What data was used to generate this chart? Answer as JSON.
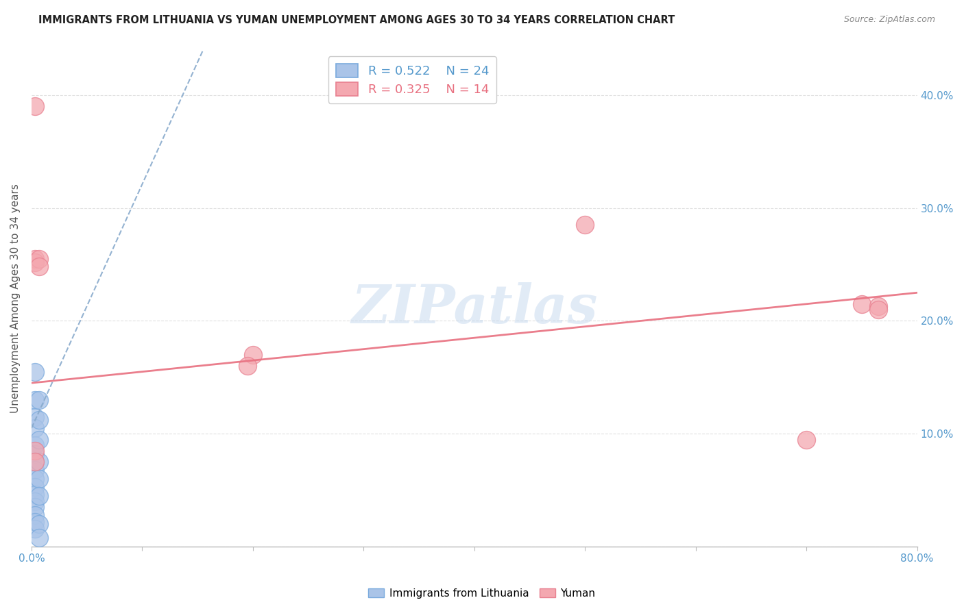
{
  "title": "IMMIGRANTS FROM LITHUANIA VS YUMAN UNEMPLOYMENT AMONG AGES 30 TO 34 YEARS CORRELATION CHART",
  "source": "Source: ZipAtlas.com",
  "ylabel": "Unemployment Among Ages 30 to 34 years",
  "xlim": [
    0.0,
    0.8
  ],
  "ylim": [
    0.0,
    0.44
  ],
  "x_ticks": [
    0.0,
    0.1,
    0.2,
    0.3,
    0.4,
    0.5,
    0.6,
    0.7,
    0.8
  ],
  "y_ticks_right": [
    0.0,
    0.1,
    0.2,
    0.3,
    0.4
  ],
  "y_tick_labels_right": [
    "",
    "10.0%",
    "20.0%",
    "30.0%",
    "40.0%"
  ],
  "blue_scatter_x": [
    0.003,
    0.003,
    0.003,
    0.003,
    0.003,
    0.003,
    0.003,
    0.003,
    0.003,
    0.003,
    0.003,
    0.003,
    0.003,
    0.003,
    0.003,
    0.003,
    0.007,
    0.007,
    0.007,
    0.007,
    0.007,
    0.007,
    0.007,
    0.007
  ],
  "blue_scatter_y": [
    0.155,
    0.13,
    0.115,
    0.105,
    0.09,
    0.082,
    0.075,
    0.068,
    0.06,
    0.053,
    0.046,
    0.04,
    0.035,
    0.028,
    0.022,
    0.016,
    0.13,
    0.112,
    0.095,
    0.075,
    0.06,
    0.045,
    0.02,
    0.008
  ],
  "pink_scatter_x": [
    0.003,
    0.003,
    0.003,
    0.003,
    0.003,
    0.007,
    0.007,
    0.2,
    0.195,
    0.5,
    0.7,
    0.75,
    0.765,
    0.765
  ],
  "pink_scatter_y": [
    0.39,
    0.255,
    0.252,
    0.085,
    0.075,
    0.255,
    0.248,
    0.17,
    0.16,
    0.285,
    0.095,
    0.215,
    0.213,
    0.21
  ],
  "blue_line_x0": 0.0,
  "blue_line_x1": 0.155,
  "blue_line_y0": 0.105,
  "blue_line_y1": 0.44,
  "pink_line_x0": 0.0,
  "pink_line_x1": 0.8,
  "pink_line_y0": 0.145,
  "pink_line_y1": 0.225,
  "watermark": "ZIPatlas",
  "blue_color": "#aac4e8",
  "blue_edge_color": "#7aaadd",
  "blue_line_color": "#88aacc",
  "pink_color": "#f4a8b0",
  "pink_edge_color": "#e88090",
  "pink_line_color": "#e87080",
  "background_color": "#ffffff",
  "grid_color": "#e0e0e0"
}
